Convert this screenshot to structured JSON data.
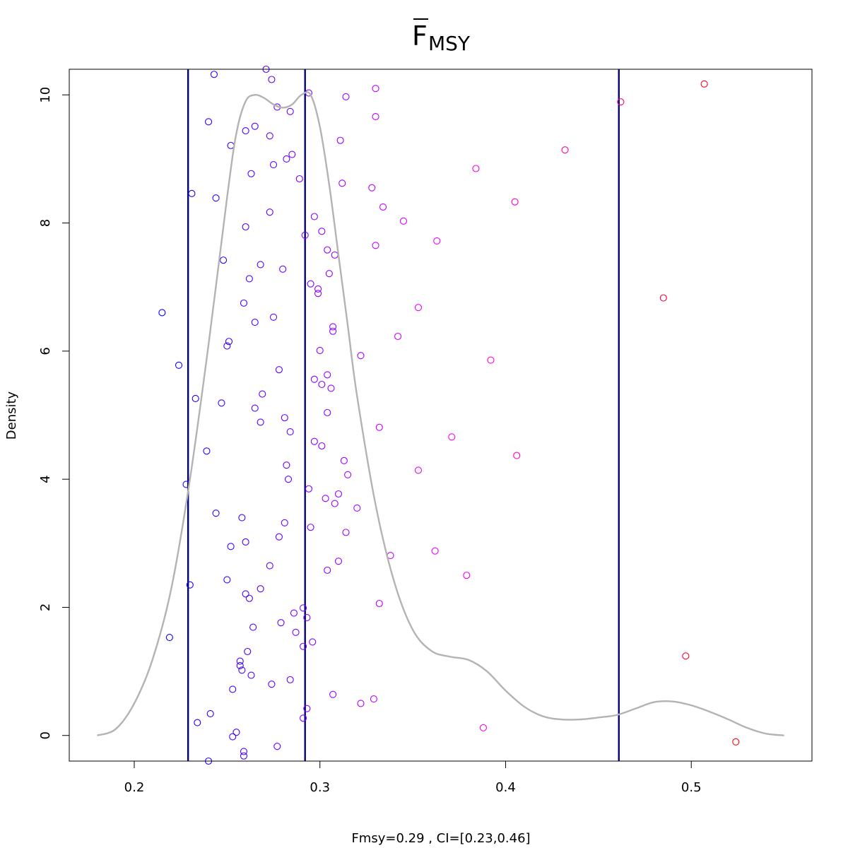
{
  "chart_data": {
    "type": "scatter",
    "title": {
      "main": "F",
      "overline": true,
      "subscript": "MSY"
    },
    "xlabel": "Fmsy=0.29 , CI=[0.23,0.46]",
    "ylabel": "Density",
    "xlim": [
      0.165,
      0.565
    ],
    "ylim": [
      -0.4,
      10.4
    ],
    "x_ticks": [
      0.2,
      0.3,
      0.4,
      0.5
    ],
    "x_tick_labels": [
      "0.2",
      "0.3",
      "0.4",
      "0.5"
    ],
    "y_ticks": [
      0,
      2,
      4,
      6,
      8,
      10
    ],
    "y_tick_labels": [
      "0",
      "2",
      "4",
      "6",
      "8",
      "10"
    ],
    "grid": false,
    "reference_lines": {
      "color": "#000080",
      "x": [
        0.229,
        0.292,
        0.461
      ]
    },
    "density_curve": {
      "color": "#b3b3b3",
      "x": [
        0.18,
        0.19,
        0.2,
        0.21,
        0.22,
        0.23,
        0.24,
        0.25,
        0.255,
        0.26,
        0.265,
        0.27,
        0.275,
        0.28,
        0.285,
        0.29,
        0.295,
        0.3,
        0.305,
        0.31,
        0.315,
        0.32,
        0.33,
        0.34,
        0.35,
        0.36,
        0.37,
        0.38,
        0.39,
        0.4,
        0.41,
        0.42,
        0.43,
        0.44,
        0.45,
        0.46,
        0.47,
        0.48,
        0.49,
        0.5,
        0.51,
        0.52,
        0.53,
        0.54,
        0.55
      ],
      "y": [
        0.0,
        0.1,
        0.5,
        1.2,
        2.3,
        4.0,
        6.1,
        8.4,
        9.4,
        9.9,
        10.0,
        9.95,
        9.85,
        9.8,
        9.85,
        10.0,
        10.0,
        9.5,
        8.6,
        7.5,
        6.4,
        5.3,
        3.6,
        2.4,
        1.65,
        1.32,
        1.23,
        1.18,
        1.0,
        0.7,
        0.45,
        0.3,
        0.25,
        0.25,
        0.28,
        0.32,
        0.42,
        0.52,
        0.53,
        0.47,
        0.37,
        0.25,
        0.12,
        0.03,
        0.0
      ]
    },
    "point_color_scale": [
      "#0000ff",
      "#ff00ff",
      "#ff0000"
    ],
    "points": [
      [
        0.215,
        6.6
      ],
      [
        0.219,
        1.53
      ],
      [
        0.224,
        5.78
      ],
      [
        0.228,
        3.92
      ],
      [
        0.23,
        2.35
      ],
      [
        0.231,
        8.46
      ],
      [
        0.233,
        5.26
      ],
      [
        0.234,
        0.2
      ],
      [
        0.239,
        4.44
      ],
      [
        0.24,
        9.58
      ],
      [
        0.24,
        -0.4
      ],
      [
        0.241,
        0.34
      ],
      [
        0.243,
        10.32
      ],
      [
        0.244,
        8.39
      ],
      [
        0.244,
        3.47
      ],
      [
        0.247,
        5.19
      ],
      [
        0.248,
        7.42
      ],
      [
        0.25,
        6.08
      ],
      [
        0.251,
        6.15
      ],
      [
        0.25,
        2.43
      ],
      [
        0.252,
        9.21
      ],
      [
        0.252,
        2.95
      ],
      [
        0.253,
        0.72
      ],
      [
        0.253,
        -0.02
      ],
      [
        0.255,
        0.05
      ],
      [
        0.257,
        1.16
      ],
      [
        0.257,
        1.09
      ],
      [
        0.258,
        3.4
      ],
      [
        0.258,
        1.02
      ],
      [
        0.259,
        6.75
      ],
      [
        0.259,
        -0.32
      ],
      [
        0.259,
        -0.25
      ],
      [
        0.26,
        9.44
      ],
      [
        0.26,
        7.94
      ],
      [
        0.26,
        3.02
      ],
      [
        0.26,
        2.21
      ],
      [
        0.261,
        1.31
      ],
      [
        0.262,
        7.13
      ],
      [
        0.262,
        2.14
      ],
      [
        0.263,
        8.77
      ],
      [
        0.263,
        0.94
      ],
      [
        0.264,
        1.69
      ],
      [
        0.265,
        9.51
      ],
      [
        0.265,
        6.45
      ],
      [
        0.265,
        5.11
      ],
      [
        0.268,
        7.35
      ],
      [
        0.268,
        4.89
      ],
      [
        0.268,
        2.29
      ],
      [
        0.269,
        5.33
      ],
      [
        0.271,
        10.4
      ],
      [
        0.273,
        2.65
      ],
      [
        0.273,
        8.17
      ],
      [
        0.273,
        9.36
      ],
      [
        0.274,
        10.24
      ],
      [
        0.274,
        0.8
      ],
      [
        0.275,
        8.91
      ],
      [
        0.275,
        6.53
      ],
      [
        0.277,
        9.81
      ],
      [
        0.277,
        -0.17
      ],
      [
        0.278,
        5.71
      ],
      [
        0.278,
        3.1
      ],
      [
        0.279,
        1.76
      ],
      [
        0.28,
        7.28
      ],
      [
        0.281,
        4.96
      ],
      [
        0.281,
        3.32
      ],
      [
        0.282,
        9.0
      ],
      [
        0.282,
        4.22
      ],
      [
        0.283,
        4.0
      ],
      [
        0.284,
        9.74
      ],
      [
        0.284,
        4.74
      ],
      [
        0.284,
        0.87
      ],
      [
        0.285,
        9.07
      ],
      [
        0.286,
        1.91
      ],
      [
        0.287,
        1.61
      ],
      [
        0.289,
        8.69
      ],
      [
        0.291,
        1.99
      ],
      [
        0.291,
        1.39
      ],
      [
        0.292,
        7.81
      ],
      [
        0.291,
        0.27
      ],
      [
        0.293,
        1.84
      ],
      [
        0.293,
        0.42
      ],
      [
        0.294,
        10.03
      ],
      [
        0.294,
        3.85
      ],
      [
        0.295,
        7.05
      ],
      [
        0.295,
        3.25
      ],
      [
        0.296,
        1.46
      ],
      [
        0.297,
        8.1
      ],
      [
        0.297,
        5.56
      ],
      [
        0.297,
        4.59
      ],
      [
        0.299,
        6.97
      ],
      [
        0.299,
        6.9
      ],
      [
        0.3,
        6.01
      ],
      [
        0.301,
        7.87
      ],
      [
        0.301,
        5.48
      ],
      [
        0.301,
        4.52
      ],
      [
        0.303,
        3.7
      ],
      [
        0.304,
        7.58
      ],
      [
        0.304,
        5.63
      ],
      [
        0.304,
        5.04
      ],
      [
        0.304,
        2.58
      ],
      [
        0.305,
        7.21
      ],
      [
        0.306,
        5.42
      ],
      [
        0.307,
        6.38
      ],
      [
        0.307,
        6.31
      ],
      [
        0.307,
        0.64
      ],
      [
        0.308,
        7.5
      ],
      [
        0.308,
        3.62
      ],
      [
        0.31,
        3.77
      ],
      [
        0.31,
        2.72
      ],
      [
        0.311,
        9.29
      ],
      [
        0.312,
        8.62
      ],
      [
        0.313,
        4.29
      ],
      [
        0.314,
        9.97
      ],
      [
        0.314,
        3.17
      ],
      [
        0.315,
        4.07
      ],
      [
        0.32,
        3.55
      ],
      [
        0.322,
        5.93
      ],
      [
        0.322,
        0.5
      ],
      [
        0.328,
        8.55
      ],
      [
        0.329,
        0.57
      ],
      [
        0.33,
        10.1
      ],
      [
        0.33,
        9.66
      ],
      [
        0.33,
        7.65
      ],
      [
        0.332,
        4.81
      ],
      [
        0.332,
        2.06
      ],
      [
        0.334,
        8.25
      ],
      [
        0.338,
        2.81
      ],
      [
        0.342,
        6.23
      ],
      [
        0.345,
        8.03
      ],
      [
        0.353,
        6.68
      ],
      [
        0.353,
        4.14
      ],
      [
        0.362,
        2.88
      ],
      [
        0.363,
        7.72
      ],
      [
        0.371,
        4.66
      ],
      [
        0.379,
        2.5
      ],
      [
        0.384,
        8.85
      ],
      [
        0.388,
        0.12
      ],
      [
        0.392,
        5.86
      ],
      [
        0.405,
        8.33
      ],
      [
        0.406,
        4.37
      ],
      [
        0.432,
        9.14
      ],
      [
        0.462,
        9.89
      ],
      [
        0.485,
        6.83
      ],
      [
        0.497,
        1.24
      ],
      [
        0.507,
        10.17
      ],
      [
        0.524,
        -0.1
      ]
    ]
  }
}
